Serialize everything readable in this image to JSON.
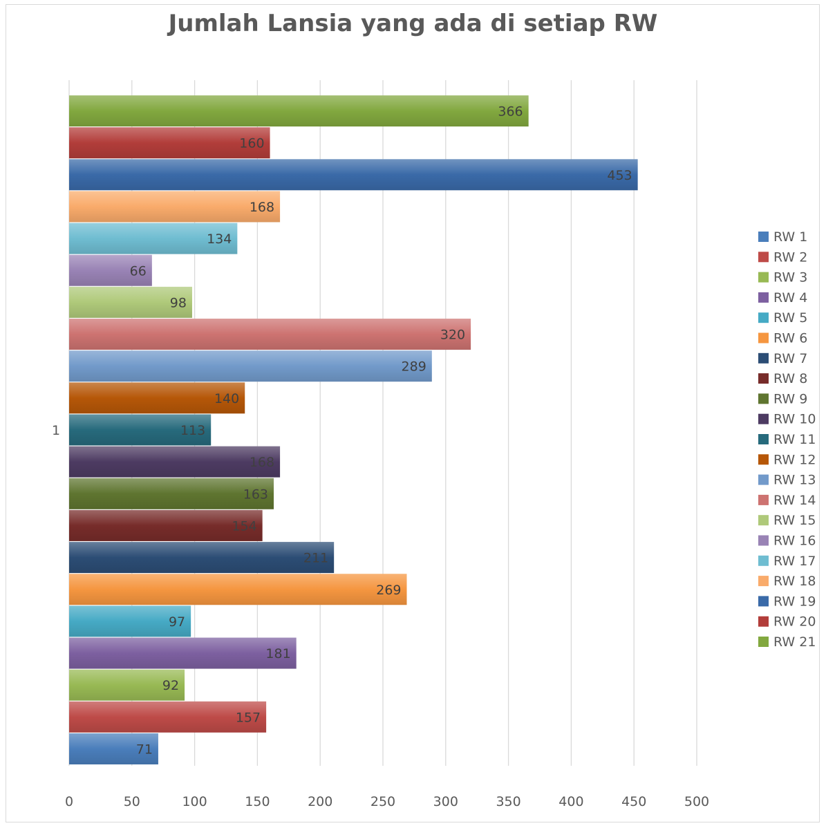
{
  "chart_data": {
    "type": "bar",
    "orientation": "horizontal",
    "title": "Jumlah Lansia yang ada di setiap RW",
    "categories": [
      "1"
    ],
    "xlim": [
      0,
      500
    ],
    "x_ticks": [
      0,
      50,
      100,
      150,
      200,
      250,
      300,
      350,
      400,
      450,
      500
    ],
    "grid": true,
    "legend_position": "right",
    "series": [
      {
        "name": "RW 1",
        "values": [
          71
        ],
        "color": "#4a7ebb"
      },
      {
        "name": "RW 2",
        "values": [
          157
        ],
        "color": "#be4b48"
      },
      {
        "name": "RW 3",
        "values": [
          92
        ],
        "color": "#98b954"
      },
      {
        "name": "RW 4",
        "values": [
          181
        ],
        "color": "#7d60a0"
      },
      {
        "name": "RW 5",
        "values": [
          97
        ],
        "color": "#46aac5"
      },
      {
        "name": "RW 6",
        "values": [
          269
        ],
        "color": "#f59640"
      },
      {
        "name": "RW 7",
        "values": [
          211
        ],
        "color": "#2c4d75"
      },
      {
        "name": "RW 8",
        "values": [
          154
        ],
        "color": "#772c2a"
      },
      {
        "name": "RW 9",
        "values": [
          163
        ],
        "color": "#5f7530"
      },
      {
        "name": "RW 10",
        "values": [
          168
        ],
        "color": "#4d3b62"
      },
      {
        "name": "RW 11",
        "values": [
          113
        ],
        "color": "#276a7c"
      },
      {
        "name": "RW 12",
        "values": [
          140
        ],
        "color": "#b65708"
      },
      {
        "name": "RW 13",
        "values": [
          289
        ],
        "color": "#729aca"
      },
      {
        "name": "RW 14",
        "values": [
          320
        ],
        "color": "#cd7371"
      },
      {
        "name": "RW 15",
        "values": [
          98
        ],
        "color": "#afc97a"
      },
      {
        "name": "RW 16",
        "values": [
          66
        ],
        "color": "#9983b5"
      },
      {
        "name": "RW 17",
        "values": [
          134
        ],
        "color": "#6fbdd1"
      },
      {
        "name": "RW 18",
        "values": [
          168
        ],
        "color": "#f9ab6b"
      },
      {
        "name": "RW 19",
        "values": [
          453
        ],
        "color": "#3a6aa8"
      },
      {
        "name": "RW 20",
        "values": [
          160
        ],
        "color": "#b23d3a"
      },
      {
        "name": "RW 21",
        "values": [
          366
        ],
        "color": "#82a83f"
      }
    ]
  }
}
